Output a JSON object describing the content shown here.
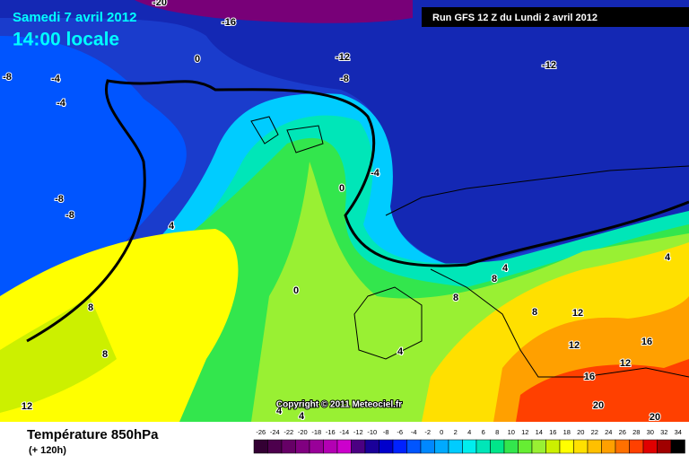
{
  "header": {
    "date": "Samedi 7 avril 2012",
    "time": "14:00 locale",
    "run": "Run GFS 12 Z du Lundi 2 avril 2012"
  },
  "copyright": "Copyright © 2011 Meteociel.fr",
  "legend": {
    "title": "Température 850hPa",
    "subtitle": "(+ 120h)",
    "values": [
      -26,
      -24,
      -22,
      -20,
      -18,
      -16,
      -14,
      -12,
      -10,
      -8,
      -6,
      -4,
      -2,
      0,
      2,
      4,
      6,
      8,
      10,
      12,
      14,
      16,
      18,
      20,
      22,
      24,
      26,
      28,
      30,
      32,
      34
    ],
    "colors": [
      "#330033",
      "#4d004d",
      "#660066",
      "#800080",
      "#990099",
      "#b300b3",
      "#cc00cc",
      "#4b0082",
      "#1a0099",
      "#0000cc",
      "#0022ff",
      "#0055ff",
      "#0088ff",
      "#00aaff",
      "#00ccff",
      "#00eeee",
      "#00e6b8",
      "#00e68a",
      "#33e64d",
      "#66ee33",
      "#99f033",
      "#ccf000",
      "#ffff00",
      "#ffe000",
      "#ffc000",
      "#ffa000",
      "#ff7000",
      "#ff4000",
      "#e00000",
      "#a00000",
      "#000000"
    ]
  },
  "contour_labels": [
    -20,
    -16,
    0,
    -12,
    -12,
    -8,
    -4,
    -4,
    -8,
    -4,
    0,
    -8,
    -8,
    4,
    8,
    8,
    12,
    0,
    4,
    4,
    8,
    8,
    8,
    12,
    12,
    16,
    12,
    16,
    20,
    20,
    4,
    4,
    4
  ]
}
